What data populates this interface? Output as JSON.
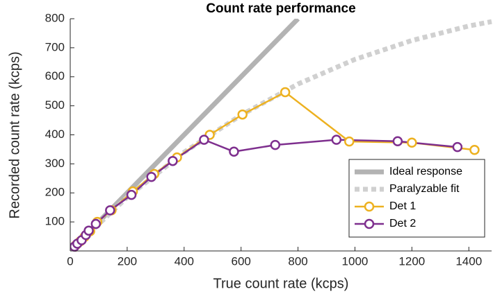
{
  "chart_data": {
    "type": "line",
    "title": "Count rate performance",
    "xlabel": "True count rate (kcps)",
    "ylabel": "Recorded count rate (kcps)",
    "xlim": [
      0,
      1480
    ],
    "ylim": [
      0,
      800
    ],
    "xticks": [
      0,
      200,
      400,
      600,
      800,
      1000,
      1200,
      1400
    ],
    "yticks": [
      100,
      200,
      300,
      400,
      500,
      600,
      700,
      800
    ],
    "grid": false,
    "legend": "lower right",
    "series": [
      {
        "name": "Ideal response",
        "color": "#b3b3b3",
        "style": "solid",
        "markers": false,
        "x": [
          0,
          800
        ],
        "values": [
          0,
          800
        ]
      },
      {
        "name": "Paralyzable fit",
        "color": "#d0d0d0",
        "style": "dashed",
        "markers": false,
        "x": [
          0,
          200,
          400,
          600,
          800,
          1000,
          1200,
          1400,
          1480
        ],
        "values": [
          0,
          185,
          340,
          468,
          575,
          660,
          725,
          775,
          790
        ]
      },
      {
        "name": "Det 1",
        "color": "#edb120",
        "style": "solid",
        "markers": true,
        "x": [
          8,
          20,
          35,
          50,
          70,
          95,
          145,
          220,
          295,
          375,
          490,
          605,
          755,
          980,
          1200,
          1420
        ],
        "values": [
          8,
          20,
          33,
          48,
          68,
          100,
          140,
          205,
          265,
          322,
          400,
          470,
          547,
          377,
          373,
          348
        ]
      },
      {
        "name": "Det 2",
        "color": "#7e2f8e",
        "style": "solid",
        "markers": true,
        "x": [
          5,
          15,
          25,
          40,
          55,
          65,
          90,
          140,
          215,
          285,
          360,
          470,
          575,
          720,
          935,
          1150,
          1360
        ],
        "values": [
          5,
          15,
          25,
          37,
          55,
          70,
          93,
          140,
          193,
          255,
          310,
          383,
          342,
          365,
          383,
          378,
          358
        ]
      }
    ]
  }
}
